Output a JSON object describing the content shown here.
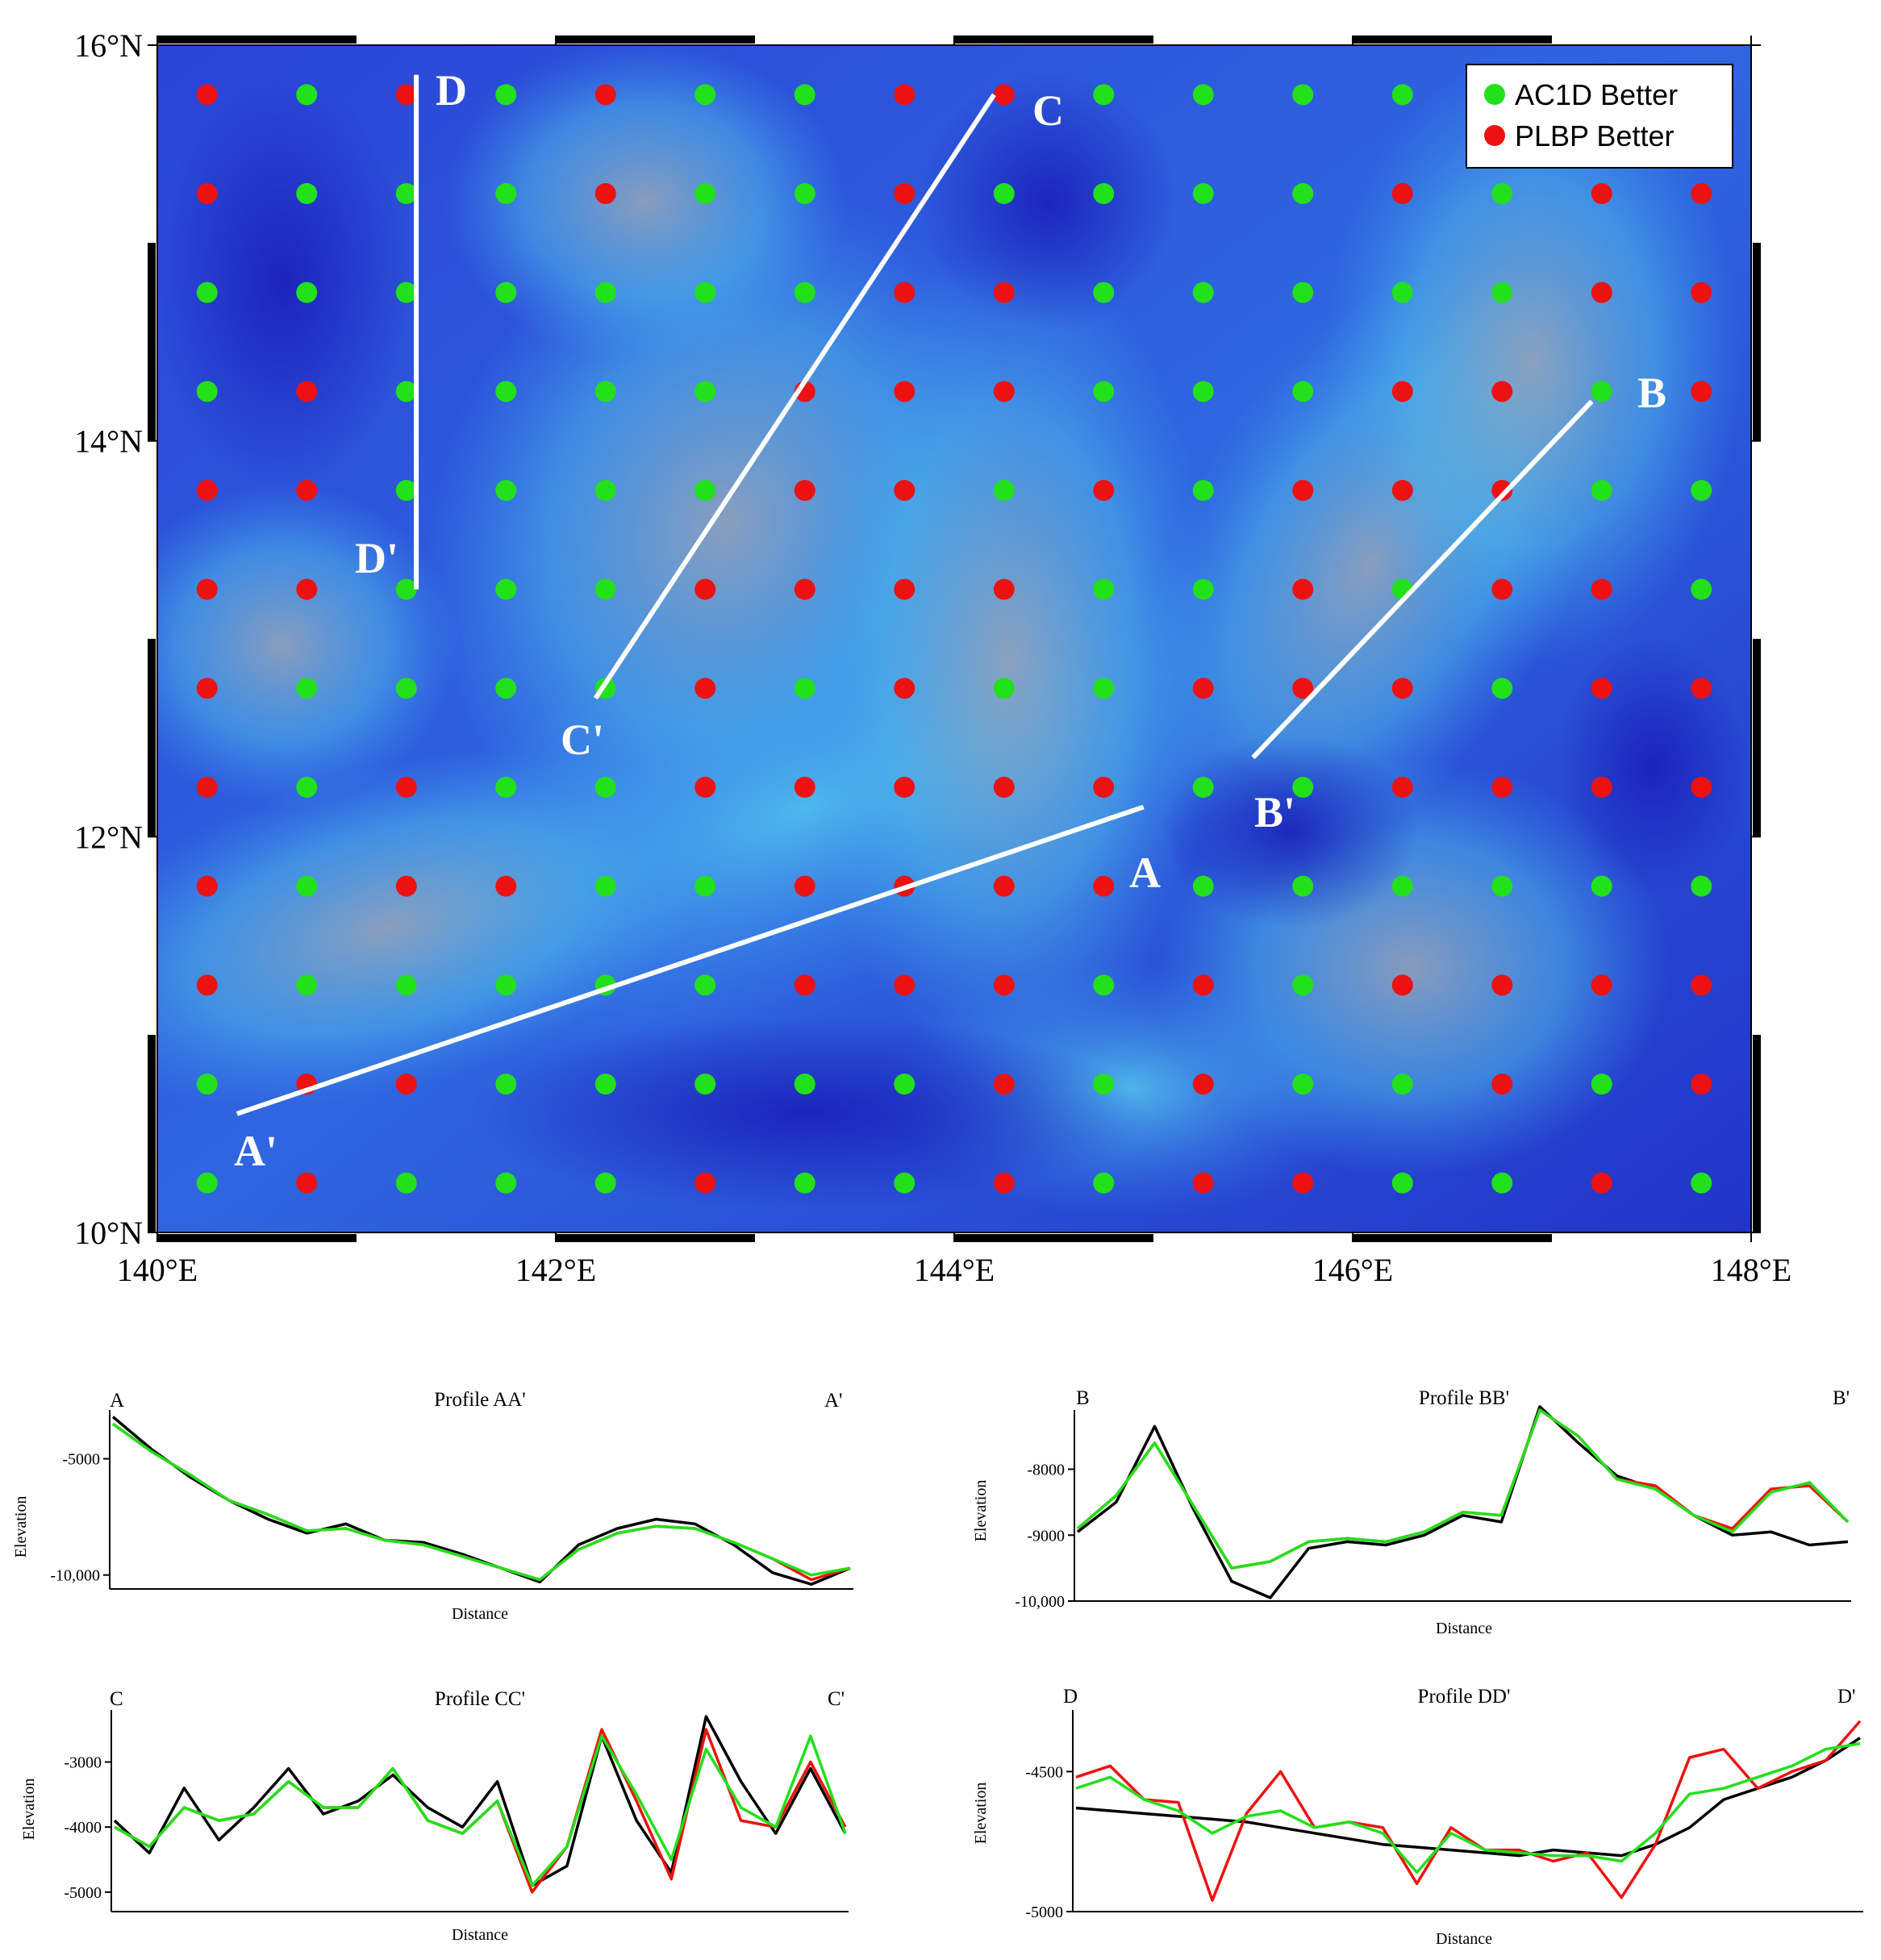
{
  "chart_data": [
    {
      "type": "scatter",
      "title": "",
      "xlim": [
        140,
        148
      ],
      "ylim": [
        10,
        16
      ],
      "x_ticks": [
        "140°E",
        "142°E",
        "144°E",
        "146°E",
        "148°E"
      ],
      "y_ticks": [
        "10°N",
        "12°N",
        "14°N",
        "16°N"
      ],
      "legend": {
        "placement": "top-right",
        "entries": [
          {
            "label": "AC1D Better",
            "color": "#22e01a"
          },
          {
            "label": "PLBP Better",
            "color": "#ee1111"
          }
        ]
      },
      "grid_points": {
        "lons": [
          140.25,
          140.75,
          141.25,
          141.75,
          142.25,
          142.75,
          143.25,
          143.75,
          144.25,
          144.75,
          145.25,
          145.75,
          146.25,
          146.75,
          147.25,
          147.75
        ],
        "lats": [
          15.75,
          15.25,
          14.75,
          14.25,
          13.75,
          13.25,
          12.75,
          12.25,
          11.75,
          11.25,
          10.75,
          10.25
        ],
        "rows": [
          "RGRGRGGRRGGGGGGG",
          "RGGGRGGRGGGGRGRR",
          "GGGGGGGRRGGGGGRR",
          "GRGGGGRRRGGGRRGR",
          "RRGGGGRRGRGRRRGG",
          "RRGGGRRRRGGRGRRG",
          "RGGGGRGRGGRRRGRR",
          "RGRGGRRRRRGGRRRR",
          "RGRRGGRRRRGGGGGG",
          "RGGGGGRRRGRGRRRR",
          "GRRGGGGGRGRGGRGR",
          "GRGGGRGGRGRRGGRG"
        ],
        "codes": {
          "G": "AC1D Better",
          "R": "PLBP Better"
        }
      },
      "profile_lines": [
        {
          "name": "A",
          "start": "A",
          "end": "A'",
          "lon1": 140.4,
          "lat1": 10.6,
          "lon2": 144.95,
          "lat2": 12.15
        },
        {
          "name": "B",
          "start": "B",
          "end": "B'",
          "lon1": 145.5,
          "lat1": 12.4,
          "lon2": 147.2,
          "lat2": 14.2
        },
        {
          "name": "C",
          "start": "C",
          "end": "C'",
          "lon1": 142.2,
          "lat1": 12.7,
          "lon2": 144.2,
          "lat2": 15.75
        },
        {
          "name": "D",
          "start": "D",
          "end": "D'",
          "lon1": 141.3,
          "lat1": 13.25,
          "lon2": 141.3,
          "lat2": 15.85
        }
      ]
    },
    {
      "type": "line",
      "title": "Profile AA'",
      "start_label": "A",
      "end_label": "A'",
      "xlabel": "Distance",
      "ylabel": "Elevation",
      "ylim": [
        -10600,
        -2900
      ],
      "yticks": [
        -5000,
        -10000
      ],
      "ytick_labels": [
        "-5000",
        "-10,000"
      ],
      "series": [
        {
          "color": "#000000",
          "values": [
            -3200,
            -4600,
            -5800,
            -6800,
            -7600,
            -8200,
            -7800,
            -8500,
            -8600,
            -9100,
            -9700,
            -10300,
            -8700,
            -8000,
            -7600,
            -7800,
            -8700,
            -9900,
            -10400,
            -9700
          ]
        },
        {
          "color": "#ee1111",
          "values": [
            -3500,
            -4700,
            -5700,
            -6800,
            -7400,
            -8100,
            -8000,
            -8500,
            -8700,
            -9200,
            -9700,
            -10200,
            -8900,
            -8200,
            -7900,
            -8000,
            -8600,
            -9300,
            -10200,
            -9700
          ]
        },
        {
          "color": "#22e01a",
          "values": [
            -3500,
            -4700,
            -5700,
            -6800,
            -7400,
            -8100,
            -8000,
            -8500,
            -8700,
            -9200,
            -9700,
            -10200,
            -8900,
            -8200,
            -7900,
            -8000,
            -8600,
            -9300,
            -10000,
            -9700
          ]
        }
      ]
    },
    {
      "type": "line",
      "title": "Profile BB'",
      "start_label": "B",
      "end_label": "B'",
      "xlabel": "Distance",
      "ylabel": "Elevation",
      "ylim": [
        -10000,
        -7100
      ],
      "yticks": [
        -8000,
        -9000,
        -10000
      ],
      "ytick_labels": [
        "-8000",
        "-9000",
        "-10,000"
      ],
      "series": [
        {
          "color": "#000000",
          "values": [
            -8950,
            -8500,
            -7350,
            -8600,
            -9700,
            -9950,
            -9200,
            -9100,
            -9150,
            -9000,
            -8700,
            -8800,
            -7050,
            -7600,
            -8100,
            -8300,
            -8700,
            -9000,
            -8950,
            -9150,
            -9100
          ]
        },
        {
          "color": "#ee1111",
          "values": [
            -8900,
            -8400,
            -7600,
            -8550,
            -9500,
            -9400,
            -9100,
            -9050,
            -9100,
            -8950,
            -8650,
            -8700,
            -7100,
            -7500,
            -8150,
            -8250,
            -8700,
            -8900,
            -8300,
            -8250,
            -8800
          ]
        },
        {
          "color": "#22e01a",
          "values": [
            -8900,
            -8400,
            -7600,
            -8550,
            -9500,
            -9400,
            -9100,
            -9050,
            -9100,
            -8950,
            -8650,
            -8700,
            -7100,
            -7500,
            -8150,
            -8300,
            -8700,
            -8950,
            -8350,
            -8200,
            -8800
          ]
        }
      ]
    },
    {
      "type": "line",
      "title": "Profile CC'",
      "start_label": "C",
      "end_label": "C'",
      "xlabel": "Distance",
      "ylabel": "Elevation",
      "ylim": [
        -5300,
        -2200
      ],
      "yticks": [
        -3000,
        -4000,
        -5000
      ],
      "ytick_labels": [
        "-3000",
        "-4000",
        "-5000"
      ],
      "series": [
        {
          "color": "#000000",
          "values": [
            -3900,
            -4400,
            -3400,
            -4200,
            -3700,
            -3100,
            -3800,
            -3600,
            -3200,
            -3700,
            -4000,
            -3300,
            -4900,
            -4600,
            -2600,
            -3900,
            -4700,
            -2300,
            -3300,
            -4100,
            -3100,
            -4100
          ]
        },
        {
          "color": "#ee1111",
          "values": [
            -4000,
            -4300,
            -3700,
            -3900,
            -3800,
            -3300,
            -3700,
            -3700,
            -3100,
            -3900,
            -4100,
            -3600,
            -5000,
            -4300,
            -2500,
            -3600,
            -4800,
            -2500,
            -3900,
            -4000,
            -3000,
            -4000
          ]
        },
        {
          "color": "#22e01a",
          "values": [
            -4000,
            -4300,
            -3700,
            -3900,
            -3800,
            -3300,
            -3700,
            -3700,
            -3100,
            -3900,
            -4100,
            -3600,
            -4900,
            -4300,
            -2600,
            -3500,
            -4500,
            -2800,
            -3700,
            -4000,
            -2600,
            -4100
          ]
        }
      ]
    },
    {
      "type": "line",
      "title": "Profile DD'",
      "start_label": "D",
      "end_label": "D'",
      "xlabel": "Distance",
      "ylabel": "Elevation",
      "ylim": [
        -5000,
        -4280
      ],
      "yticks": [
        -4500,
        -5000
      ],
      "ytick_labels": [
        "-4500",
        "-5000"
      ],
      "series": [
        {
          "color": "#000000",
          "values": [
            -4630,
            -4640,
            -4650,
            -4660,
            -4670,
            -4680,
            -4700,
            -4720,
            -4740,
            -4760,
            -4770,
            -4780,
            -4790,
            -4800,
            -4780,
            -4790,
            -4800,
            -4760,
            -4700,
            -4600,
            -4560,
            -4520,
            -4460,
            -4380
          ]
        },
        {
          "color": "#ee1111",
          "values": [
            -4520,
            -4480,
            -4600,
            -4610,
            -4960,
            -4650,
            -4500,
            -4700,
            -4680,
            -4700,
            -4900,
            -4700,
            -4780,
            -4780,
            -4820,
            -4790,
            -4950,
            -4760,
            -4450,
            -4420,
            -4560,
            -4500,
            -4460,
            -4320
          ]
        },
        {
          "color": "#22e01a",
          "values": [
            -4560,
            -4520,
            -4600,
            -4640,
            -4720,
            -4660,
            -4640,
            -4700,
            -4680,
            -4720,
            -4860,
            -4720,
            -4780,
            -4790,
            -4800,
            -4800,
            -4820,
            -4720,
            -4580,
            -4560,
            -4520,
            -4480,
            -4420,
            -4400
          ]
        }
      ]
    }
  ]
}
